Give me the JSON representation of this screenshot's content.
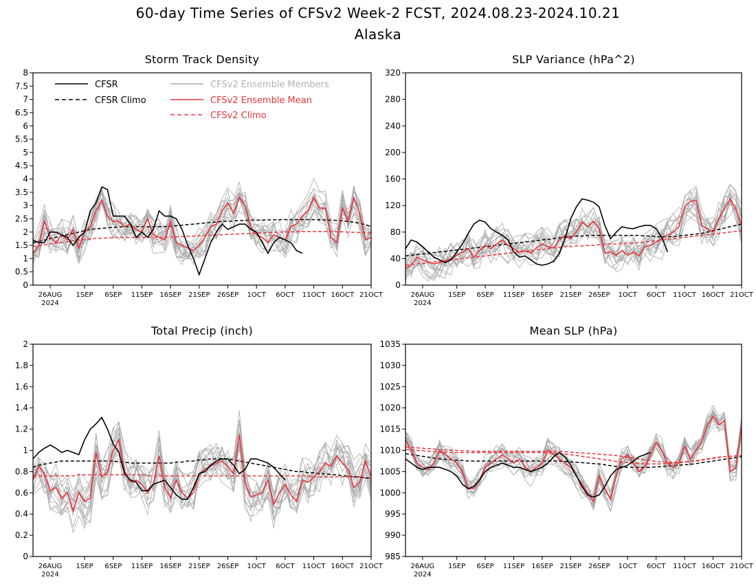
{
  "title": "60-day Time Series of CFSv2 Week-2 FCST, 2024.08.23-2024.10.21",
  "subtitle": "Alaska",
  "x_ticks": [
    "26AUG",
    "1SEP",
    "6SEP",
    "11SEP",
    "16SEP",
    "21SEP",
    "26SEP",
    "1OCT",
    "6OCT",
    "11OCT",
    "16OCT",
    "21OCT"
  ],
  "x_tick_year": "2024",
  "legend": {
    "cfsr": "CFSR",
    "cfsr_climo": "CFSR Climo",
    "members": "CFSv2 Ensemble Members",
    "mean": "CFSv2 Ensemble Mean",
    "cfsv2_climo": "CFSv2 Climo"
  },
  "colors": {
    "cfsr": "#000000",
    "members": "#a9a9a9",
    "mean": "#e8343c",
    "cfsv2_climo": "#e8343c"
  },
  "chart_data": [
    {
      "id": "storm",
      "type": "line",
      "title": "Storm Track Density",
      "x_start": "2024-08-23",
      "ylim": [
        0,
        8
      ],
      "y_ticks": [
        "0",
        "0.5",
        "1",
        "1.5",
        "2",
        "2.5",
        "3",
        "3.5",
        "4",
        "4.5",
        "5",
        "5.5",
        "6",
        "6.5",
        "7",
        "7.5",
        "8"
      ],
      "legend_position": "top-left",
      "series": {
        "cfsr": [
          1.7,
          1.6,
          1.6,
          2.0,
          2.0,
          1.9,
          1.8,
          1.5,
          1.8,
          2.0,
          2.8,
          3.1,
          3.7,
          3.6,
          2.6,
          2.6,
          2.6,
          2.3,
          1.8,
          2.0,
          1.8,
          2.1,
          2.8,
          2.6,
          2.6,
          2.5,
          2.1,
          1.5,
          1.0,
          0.4,
          1.0,
          1.6,
          2.0,
          2.3,
          2.1,
          2.2,
          2.3,
          2.3,
          2.1,
          2.0,
          1.6,
          1.2,
          1.6,
          1.8,
          1.7,
          1.6,
          1.3,
          1.2
        ],
        "cfsr_climo": [
          1.6,
          1.65,
          1.7,
          1.75,
          1.8,
          1.85,
          1.9,
          1.95,
          2.0,
          2.05,
          2.1,
          2.12,
          2.14,
          2.16,
          2.18,
          2.19,
          2.2,
          2.2,
          2.2,
          2.2,
          2.2,
          2.2,
          2.2,
          2.21,
          2.22,
          2.24,
          2.26,
          2.28,
          2.3,
          2.32,
          2.34,
          2.36,
          2.38,
          2.4,
          2.41,
          2.42,
          2.43,
          2.44,
          2.45,
          2.45,
          2.45,
          2.46,
          2.46,
          2.47,
          2.47,
          2.47,
          2.47,
          2.47,
          2.47,
          2.47,
          2.46,
          2.46,
          2.45,
          2.44,
          2.42,
          2.4,
          2.37,
          2.33,
          2.28,
          2.2
        ],
        "mean": [
          1.2,
          1.5,
          2.4,
          1.8,
          1.6,
          1.9,
          1.7,
          2.1,
          1.4,
          2.0,
          2.2,
          2.8,
          3.2,
          2.6,
          2.4,
          2.4,
          2.2,
          2.3,
          2.1,
          2.0,
          2.5,
          1.9,
          1.8,
          1.7,
          2.4,
          1.6,
          1.5,
          1.4,
          1.3,
          1.5,
          1.8,
          2.2,
          2.3,
          2.8,
          3.1,
          2.7,
          3.3,
          3.0,
          2.2,
          1.9,
          1.8,
          1.6,
          1.9,
          1.8,
          1.7,
          2.2,
          2.3,
          2.6,
          2.8,
          3.3,
          2.9,
          2.9,
          1.8,
          1.6,
          2.9,
          2.4,
          3.3,
          2.7,
          1.7,
          1.8
        ],
        "cfsv2_climo": [
          1.45,
          1.48,
          1.52,
          1.55,
          1.58,
          1.61,
          1.64,
          1.67,
          1.7,
          1.72,
          1.74,
          1.76,
          1.77,
          1.78,
          1.79,
          1.8,
          1.8,
          1.8,
          1.8,
          1.8,
          1.8,
          1.8,
          1.8,
          1.8,
          1.81,
          1.82,
          1.83,
          1.84,
          1.85,
          1.86,
          1.87,
          1.88,
          1.89,
          1.9,
          1.91,
          1.92,
          1.93,
          1.94,
          1.95,
          1.96,
          1.97,
          1.98,
          1.99,
          2.0,
          2.0,
          2.01,
          2.01,
          2.02,
          2.02,
          2.02,
          2.02,
          2.02,
          2.02,
          2.01,
          2.01,
          2.0,
          1.99,
          1.98,
          1.97,
          1.96
        ]
      },
      "members_center": "mean",
      "members_spread": 0.9,
      "members_min": 0
    },
    {
      "id": "slp_var",
      "type": "line",
      "title": "SLP Variance (hPa^2)",
      "x_start": "2024-08-23",
      "ylim": [
        0,
        320
      ],
      "y_ticks": [
        "0",
        "40",
        "80",
        "120",
        "160",
        "200",
        "240",
        "280",
        "320"
      ],
      "series": {
        "cfsr": [
          55,
          68,
          65,
          58,
          50,
          42,
          38,
          34,
          38,
          50,
          62,
          78,
          92,
          98,
          95,
          85,
          80,
          75,
          68,
          50,
          42,
          44,
          38,
          32,
          30,
          32,
          36,
          48,
          70,
          100,
          118,
          130,
          128,
          125,
          118,
          90,
          70,
          80,
          88,
          86,
          85,
          88,
          90,
          90,
          85,
          72,
          50
        ],
        "cfsr_climo": [
          44,
          45,
          46,
          47,
          48,
          49,
          50,
          51,
          52,
          53,
          54,
          55,
          56,
          57,
          58,
          59,
          60,
          61,
          62,
          63,
          64,
          65,
          66,
          67,
          68,
          69,
          70,
          71,
          72,
          73,
          74,
          74,
          75,
          75,
          75,
          75,
          75,
          75,
          75,
          75,
          75,
          75,
          74,
          74,
          73,
          73,
          73,
          73,
          74,
          75,
          76,
          77,
          78,
          80,
          82,
          84,
          86,
          88,
          90,
          92
        ],
        "mean": [
          25,
          30,
          42,
          38,
          35,
          32,
          34,
          36,
          40,
          45,
          50,
          55,
          42,
          52,
          60,
          55,
          62,
          68,
          60,
          55,
          50,
          52,
          48,
          56,
          62,
          58,
          56,
          68,
          75,
          70,
          80,
          95,
          88,
          96,
          85,
          48,
          50,
          45,
          52,
          45,
          50,
          44,
          58,
          60,
          65,
          70,
          75,
          80,
          88,
          118,
          126,
          128,
          90,
          85,
          80,
          100,
          115,
          130,
          115,
          90
        ],
        "cfsv2_climo": [
          30,
          31,
          32,
          33,
          34,
          35,
          36,
          37,
          38,
          39,
          40,
          41,
          42,
          43,
          44,
          45,
          46,
          47,
          48,
          49,
          50,
          51,
          52,
          53,
          54,
          55,
          56,
          57,
          58,
          58,
          59,
          59,
          60,
          60,
          61,
          61,
          62,
          62,
          63,
          63,
          64,
          64,
          65,
          66,
          67,
          68,
          69,
          70,
          71,
          72,
          73,
          74,
          75,
          76,
          77,
          78,
          79,
          80,
          81,
          82
        ]
      },
      "members_center": "mean",
      "members_spread": 38,
      "members_min": 5
    },
    {
      "id": "precip",
      "type": "line",
      "title": "Total Precip (inch)",
      "x_start": "2024-08-23",
      "ylim": [
        0,
        2
      ],
      "y_ticks": [
        "0",
        "0.2",
        "0.4",
        "0.6",
        "0.8",
        "1",
        "1.2",
        "1.4",
        "1.6",
        "1.8",
        "2"
      ],
      "series": {
        "cfsr": [
          0.92,
          0.98,
          1.02,
          1.05,
          1.02,
          0.98,
          1.0,
          0.98,
          0.96,
          1.1,
          1.2,
          1.25,
          1.31,
          1.2,
          1.06,
          0.98,
          0.78,
          0.72,
          0.7,
          0.62,
          0.62,
          0.68,
          0.7,
          0.72,
          0.65,
          0.58,
          0.54,
          0.54,
          0.65,
          0.78,
          0.8,
          0.86,
          0.9,
          0.92,
          0.92,
          0.86,
          0.78,
          0.82,
          0.92,
          0.92,
          0.9,
          0.88,
          0.84,
          0.78,
          0.72
        ],
        "cfsr_climo": [
          0.84,
          0.86,
          0.87,
          0.88,
          0.89,
          0.9,
          0.9,
          0.9,
          0.9,
          0.9,
          0.9,
          0.9,
          0.9,
          0.9,
          0.9,
          0.89,
          0.89,
          0.88,
          0.88,
          0.88,
          0.88,
          0.88,
          0.88,
          0.88,
          0.88,
          0.89,
          0.89,
          0.9,
          0.9,
          0.91,
          0.91,
          0.92,
          0.92,
          0.92,
          0.92,
          0.91,
          0.9,
          0.89,
          0.88,
          0.87,
          0.86,
          0.85,
          0.84,
          0.83,
          0.82,
          0.81,
          0.8,
          0.8,
          0.79,
          0.79,
          0.78,
          0.78,
          0.77,
          0.77,
          0.76,
          0.76,
          0.75,
          0.75,
          0.74,
          0.74
        ],
        "mean": [
          0.72,
          0.85,
          0.78,
          0.62,
          0.65,
          0.55,
          0.6,
          0.43,
          0.6,
          0.52,
          0.55,
          0.98,
          0.75,
          0.8,
          1.0,
          1.1,
          0.8,
          0.7,
          0.72,
          0.68,
          0.6,
          0.68,
          0.95,
          0.65,
          0.55,
          0.72,
          0.6,
          0.55,
          0.6,
          0.78,
          0.82,
          0.85,
          0.88,
          0.9,
          0.85,
          0.78,
          1.15,
          0.7,
          0.56,
          0.58,
          0.6,
          0.72,
          0.49,
          0.6,
          0.68,
          0.58,
          0.52,
          0.72,
          0.7,
          0.75,
          0.8,
          0.88,
          0.85,
          0.95,
          0.88,
          0.82,
          0.65,
          0.7,
          0.9,
          0.75
        ],
        "cfsv2_climo": [
          0.76,
          0.76,
          0.76,
          0.76,
          0.76,
          0.76,
          0.76,
          0.76,
          0.77,
          0.77,
          0.77,
          0.77,
          0.77,
          0.77,
          0.77,
          0.77,
          0.77,
          0.77,
          0.77,
          0.77,
          0.76,
          0.76,
          0.76,
          0.76,
          0.76,
          0.76,
          0.76,
          0.76,
          0.76,
          0.76,
          0.76,
          0.76,
          0.76,
          0.76,
          0.76,
          0.76,
          0.76,
          0.76,
          0.76,
          0.76,
          0.76,
          0.76,
          0.76,
          0.76,
          0.76,
          0.76,
          0.76,
          0.76,
          0.76,
          0.75,
          0.75,
          0.75,
          0.75,
          0.75,
          0.75,
          0.75,
          0.75,
          0.75,
          0.74,
          0.74
        ]
      },
      "members_center": "mean",
      "members_spread": 0.3,
      "members_min": 0.1
    },
    {
      "id": "mslp",
      "type": "line",
      "title": "Mean SLP (hPa)",
      "x_start": "2024-08-23",
      "ylim": [
        985,
        1035
      ],
      "y_ticks": [
        "985",
        "990",
        "995",
        "1000",
        "1005",
        "1010",
        "1015",
        "1020",
        "1025",
        "1030",
        "1035"
      ],
      "series": {
        "cfsr": [
          1008,
          1007,
          1006,
          1005.5,
          1006,
          1006,
          1006,
          1005.5,
          1005,
          1004,
          1002,
          1001,
          1001.5,
          1003,
          1005,
          1006,
          1006.5,
          1007,
          1006.5,
          1006,
          1006,
          1005.5,
          1005,
          1005.5,
          1006,
          1007,
          1008.5,
          1009.5,
          1008.5,
          1006.5,
          1004,
          1001.5,
          999.5,
          999,
          999.5,
          1001.5,
          1004,
          1005.5,
          1006,
          1006.5,
          1007.5,
          1008.5,
          1009,
          1009.5
        ],
        "cfsr_climo": [
          1009.2,
          1009,
          1008.8,
          1008.6,
          1008.4,
          1008.2,
          1008,
          1007.9,
          1007.8,
          1007.7,
          1007.6,
          1007.5,
          1007.5,
          1007.5,
          1007.5,
          1007.5,
          1007.5,
          1007.5,
          1007.5,
          1007.5,
          1007.5,
          1007.5,
          1007.5,
          1007.5,
          1007.5,
          1007.5,
          1007.5,
          1007.5,
          1007.4,
          1007.3,
          1007.2,
          1007.1,
          1007,
          1006.9,
          1006.8,
          1006.6,
          1006.4,
          1006.2,
          1006.1,
          1006,
          1006,
          1006,
          1006,
          1006,
          1006.1,
          1006.2,
          1006.3,
          1006.4,
          1006.5,
          1006.6,
          1006.7,
          1006.9,
          1007.1,
          1007.3,
          1007.5,
          1007.7,
          1007.9,
          1008.1,
          1008.3,
          1008.5
        ],
        "mean": [
          1012.5,
          1010,
          1007,
          1006,
          1005.5,
          1007,
          1010,
          1009,
          1008,
          1007,
          1005,
          1001,
          1001,
          1003,
          1006,
          1007,
          1008,
          1009,
          1008,
          1007,
          1008,
          1006,
          1005,
          1006,
          1007,
          1010,
          1009,
          1008,
          1007,
          1006,
          1004,
          1002,
          1000,
          998,
          1004,
          1001,
          998.5,
          1004,
          1008,
          1009,
          1007,
          1005,
          1006,
          1009,
          1012,
          1010,
          1007,
          1006,
          1007,
          1011,
          1008,
          1010,
          1012,
          1016,
          1018,
          1016,
          1017,
          1005,
          1006,
          1016
        ]
      },
      "extra_series": {
        "cfsv2_climo_a": [
          1010.8,
          1010.7,
          1010.6,
          1010.5,
          1010.4,
          1010.3,
          1010.2,
          1010.1,
          1010,
          1010,
          1009.9,
          1009.9,
          1009.8,
          1009.8,
          1009.8,
          1009.8,
          1009.8,
          1009.8,
          1009.8,
          1009.8,
          1009.8,
          1009.8,
          1009.8,
          1009.8,
          1009.8,
          1009.8,
          1009.8,
          1009.8,
          1009.7,
          1009.6,
          1009.5,
          1009.4,
          1009.3,
          1009.2,
          1009.1,
          1009,
          1008.9,
          1008.8,
          1008.6,
          1008.4,
          1008.2,
          1008,
          1007.8,
          1007.6,
          1007.4,
          1007.3,
          1007.2,
          1007.2,
          1007.2,
          1007.3,
          1007.4,
          1007.5,
          1007.7,
          1007.9,
          1008.1,
          1008.3,
          1008.5,
          1008.6,
          1008.7,
          1008.8
        ],
        "cfsv2_climo_b": [
          1010.2,
          1010.1,
          1010,
          1009.9,
          1009.8,
          1009.7,
          1009.6,
          1009.6,
          1009.5,
          1009.5,
          1009.5,
          1009.5,
          1009.5,
          1009.5,
          1009.5,
          1009.5,
          1009.5,
          1009.5,
          1009.5,
          1009.5,
          1009.5,
          1009.5,
          1009.5,
          1009.5,
          1009.5,
          1009.4,
          1009.3,
          1009.2,
          1009.1,
          1009,
          1008.8,
          1008.6,
          1008.4,
          1008.2,
          1008,
          1007.8,
          1007.6,
          1007.4,
          1007.2,
          1007.1,
          1007,
          1006.9,
          1006.8,
          1006.8,
          1006.8,
          1006.8,
          1006.9,
          1007,
          1007.1,
          1007.2,
          1007.4,
          1007.6,
          1007.8,
          1008,
          1008.2,
          1008.4,
          1008.5,
          1008.6,
          1008.7,
          1008.8
        ]
      },
      "members_center": "mean",
      "members_spread": 4,
      "members_min": 985
    }
  ]
}
